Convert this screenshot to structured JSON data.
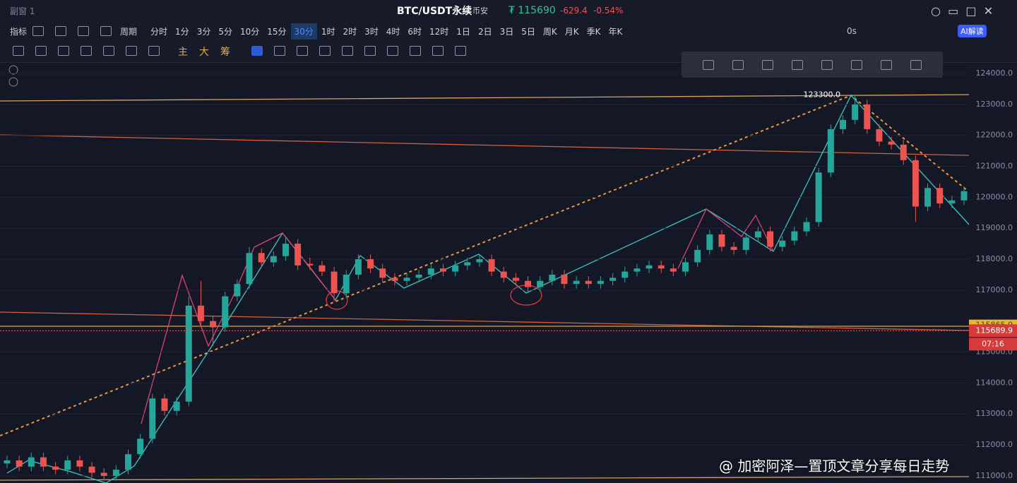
{
  "window": {
    "title": "副窗 1"
  },
  "header": {
    "symbol": "BTC/USDT永续",
    "exchange": "币安",
    "price": "₮ 115690",
    "change": "-629.4",
    "change_pct": "-0.54%"
  },
  "toolbar": {
    "indicator": "指标",
    "period": "周期",
    "timeframes": [
      "分时",
      "1分",
      "3分",
      "5分",
      "10分",
      "15分",
      "30分",
      "1时",
      "2时",
      "3时",
      "4时",
      "6时",
      "12时",
      "1日",
      "2日",
      "3日",
      "5日",
      "周K",
      "月K",
      "季K",
      "年K"
    ],
    "active": "30分",
    "latency": "0s",
    "ai": "AI解读"
  },
  "drawing_tools": {
    "labels": [
      "主",
      "大",
      "筹"
    ]
  },
  "chart_data": {
    "type": "candlestick",
    "up_color": "#26a69a",
    "down_color": "#ef5350",
    "candles": [
      [
        111400,
        111650,
        111250,
        111500
      ],
      [
        111500,
        111650,
        111150,
        111300
      ],
      [
        111300,
        111750,
        111150,
        111600
      ],
      [
        111600,
        111750,
        111150,
        111300
      ],
      [
        111300,
        111450,
        111050,
        111200
      ],
      [
        111200,
        111650,
        111050,
        111500
      ],
      [
        111500,
        111650,
        111150,
        111300
      ],
      [
        111300,
        111450,
        110950,
        111100
      ],
      [
        111100,
        111250,
        110850,
        111000
      ],
      [
        111000,
        111350,
        110850,
        111200
      ],
      [
        111200,
        111850,
        111050,
        111700
      ],
      [
        111700,
        112350,
        111550,
        112200
      ],
      [
        112200,
        113650,
        112050,
        113500
      ],
      [
        113500,
        113650,
        112950,
        113100
      ],
      [
        113100,
        113550,
        112950,
        113400
      ],
      [
        113400,
        116800,
        113250,
        116500
      ],
      [
        116500,
        117300,
        115850,
        116000
      ],
      [
        116000,
        116150,
        115200,
        115800
      ],
      [
        115800,
        116950,
        115650,
        116800
      ],
      [
        116800,
        117350,
        116650,
        117200
      ],
      [
        117200,
        118400,
        117050,
        118200
      ],
      [
        118200,
        118350,
        117750,
        117900
      ],
      [
        117900,
        118250,
        117750,
        118100
      ],
      [
        118100,
        118700,
        117950,
        118500
      ],
      [
        118500,
        118650,
        117650,
        117800
      ],
      [
        117850,
        118050,
        117650,
        117800
      ],
      [
        117800,
        117950,
        117450,
        117600
      ],
      [
        117600,
        117750,
        116650,
        116900
      ],
      [
        116900,
        117650,
        116750,
        117500
      ],
      [
        117500,
        118150,
        117350,
        118000
      ],
      [
        118000,
        118150,
        117550,
        117700
      ],
      [
        117700,
        117850,
        117250,
        117400
      ],
      [
        117400,
        117550,
        117150,
        117300
      ],
      [
        117300,
        117550,
        117150,
        117400
      ],
      [
        117400,
        117650,
        117250,
        117500
      ],
      [
        117500,
        117850,
        117350,
        117700
      ],
      [
        117700,
        117850,
        117450,
        117600
      ],
      [
        117600,
        117950,
        117450,
        117800
      ],
      [
        117800,
        118050,
        117650,
        117900
      ],
      [
        117900,
        118150,
        117750,
        118000
      ],
      [
        118000,
        118150,
        117450,
        117600
      ],
      [
        117600,
        117750,
        117250,
        117400
      ],
      [
        117400,
        117550,
        117150,
        117300
      ],
      [
        117300,
        117450,
        116950,
        117100
      ],
      [
        117100,
        117450,
        116950,
        117300
      ],
      [
        117300,
        117650,
        117150,
        117500
      ],
      [
        117500,
        117650,
        117050,
        117200
      ],
      [
        117200,
        117450,
        117050,
        117300
      ],
      [
        117300,
        117450,
        117050,
        117200
      ],
      [
        117200,
        117450,
        117050,
        117300
      ],
      [
        117300,
        117550,
        117150,
        117400
      ],
      [
        117400,
        117750,
        117250,
        117600
      ],
      [
        117600,
        117850,
        117450,
        117700
      ],
      [
        117700,
        117950,
        117550,
        117800
      ],
      [
        117800,
        117950,
        117550,
        117700
      ],
      [
        117700,
        117850,
        117450,
        117600
      ],
      [
        117600,
        118050,
        117450,
        117900
      ],
      [
        117900,
        118450,
        117750,
        118300
      ],
      [
        118300,
        118950,
        118150,
        118800
      ],
      [
        118800,
        118950,
        118250,
        118400
      ],
      [
        118400,
        118550,
        118150,
        118300
      ],
      [
        118300,
        118850,
        118150,
        118700
      ],
      [
        118700,
        119050,
        118550,
        118900
      ],
      [
        118900,
        119050,
        118250,
        118400
      ],
      [
        118400,
        118750,
        118250,
        118600
      ],
      [
        118600,
        119050,
        118450,
        118900
      ],
      [
        118900,
        119350,
        118750,
        119200
      ],
      [
        119200,
        120950,
        119050,
        120800
      ],
      [
        120800,
        122350,
        120650,
        122200
      ],
      [
        122200,
        122650,
        122050,
        122500
      ],
      [
        122500,
        123300,
        122350,
        123000
      ],
      [
        123000,
        123150,
        122050,
        122200
      ],
      [
        122200,
        122350,
        121650,
        121800
      ],
      [
        121800,
        121950,
        121550,
        121700
      ],
      [
        121700,
        121850,
        121050,
        121200
      ],
      [
        121200,
        121350,
        119200,
        119700
      ],
      [
        119700,
        120450,
        119550,
        120300
      ],
      [
        120300,
        120450,
        119650,
        119800
      ],
      [
        119800,
        120050,
        119650,
        119900
      ],
      [
        119900,
        120350,
        119750,
        120200
      ]
    ],
    "ylim": [
      110770,
      124320
    ],
    "yticks": [
      {
        "value": 124000,
        "label": "124000.0"
      },
      {
        "value": 123000,
        "label": "123000.0"
      },
      {
        "value": 122000,
        "label": "122000.0"
      },
      {
        "value": 121000,
        "label": "121000.0"
      },
      {
        "value": 120000,
        "label": "120000.0"
      },
      {
        "value": 119000,
        "label": "119000.0"
      },
      {
        "value": 118000,
        "label": "118000.0"
      },
      {
        "value": 117000,
        "label": "117000.0"
      },
      {
        "value": 115000,
        "label": "115000.0"
      },
      {
        "value": 114000,
        "label": "114000.0"
      },
      {
        "value": 113000,
        "label": "113000.0"
      },
      {
        "value": 112000,
        "label": "112000.0"
      },
      {
        "value": 111000,
        "label": "111000.0"
      }
    ],
    "grid": true,
    "last_price": {
      "value": 115689.9,
      "label": "115689.9"
    },
    "countdown": "07:16",
    "line_label": {
      "value": 115865.0,
      "label": "115865.0"
    },
    "peak_label": {
      "value": 123300,
      "label": "123300.0"
    }
  },
  "watermark": "@ 加密阿泽—置顶文章分享每日走势"
}
